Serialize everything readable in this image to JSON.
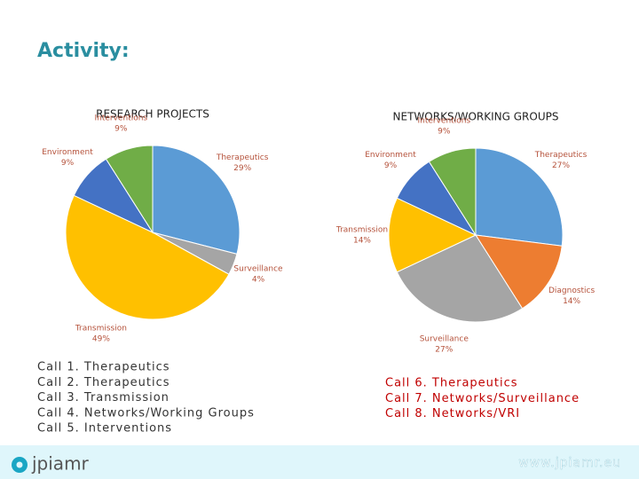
{
  "header": {
    "title": "Activity:"
  },
  "chart_data": [
    {
      "type": "pie",
      "title": "RESEARCH PROJECTS",
      "categories": [
        "Therapeutics",
        "Surveillance",
        "Transmission",
        "Environment",
        "Interventions"
      ],
      "values": [
        29,
        4,
        49,
        9,
        9
      ],
      "value_labels": [
        "29%",
        "4%",
        "49%",
        "9%",
        "9%"
      ],
      "colors": [
        "#5b9bd5",
        "#a5a5a5",
        "#ffc000",
        "#4472c4",
        "#70ad47"
      ]
    },
    {
      "type": "pie",
      "title": "NETWORKS/WORKING GROUPS",
      "categories": [
        "Therapeutics",
        "Diagnostics",
        "Surveillance",
        "Transmission",
        "Environment",
        "Interventions"
      ],
      "values": [
        27,
        14,
        27,
        14,
        9,
        9
      ],
      "value_labels": [
        "27%",
        "14%",
        "27%",
        "14%",
        "9%",
        "9%"
      ],
      "colors": [
        "#5b9bd5",
        "#ed7d31",
        "#a5a5a5",
        "#ffc000",
        "#4472c4",
        "#70ad47"
      ]
    }
  ],
  "calls_left": [
    "Call 1. Therapeutics",
    "Call 2. Therapeutics",
    "Call 3. Transmission",
    "Call 4. Networks/Working Groups",
    "Call 5. Interventions"
  ],
  "calls_right": [
    "Call 6. Therapeutics",
    "Call 7. Networks/Surveillance",
    "Call 8. Networks/VRI"
  ],
  "footer": {
    "logo": "jpiamr",
    "url": "www.jpiamr.eu"
  }
}
